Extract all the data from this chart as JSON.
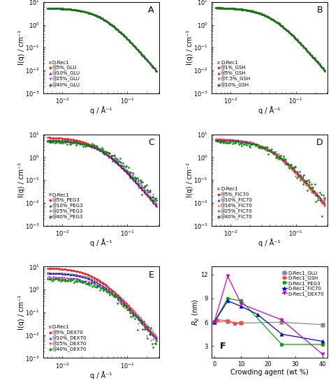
{
  "panels": {
    "A": {
      "label": "A",
      "legend_entries": [
        "D-Rec1",
        "@5%_GLU",
        "@10%_GLU",
        "@25%_GLU",
        "@40%_GLU"
      ],
      "colors": [
        "#999999",
        "#ff0000",
        "#0000cc",
        "#cc00cc",
        "#008800"
      ],
      "markers": [
        "s",
        "o",
        "^",
        "v",
        "D"
      ],
      "I0": [
        5.5,
        5.5,
        5.5,
        5.5,
        5.5
      ],
      "Rg_ang": [
        40,
        40,
        40,
        40,
        40
      ],
      "noise": [
        0.0,
        0.0,
        0.0,
        0.0,
        0.05
      ],
      "seeds": [
        1,
        2,
        3,
        4,
        5
      ]
    },
    "B": {
      "label": "B",
      "legend_entries": [
        "D-Rec1",
        "@1%_GSH",
        "@5%_GSH",
        "@7.5%_GSH",
        "@10%_GSH"
      ],
      "colors": [
        "#999999",
        "#ff0000",
        "#0000cc",
        "#cc00cc",
        "#008800"
      ],
      "markers": [
        "s",
        "o",
        "^",
        "v",
        "D"
      ],
      "I0": [
        5.5,
        5.6,
        5.7,
        5.7,
        5.7
      ],
      "Rg_ang": [
        40,
        40,
        40,
        40,
        40
      ],
      "noise": [
        0.0,
        0.0,
        0.0,
        0.0,
        0.06
      ],
      "seeds": [
        11,
        12,
        13,
        14,
        15
      ]
    },
    "C": {
      "label": "C",
      "legend_entries": [
        "D-Rec1",
        "@5%_PEG3",
        "@10%_PEG3",
        "@25%_PEG3",
        "@40%_PEG3"
      ],
      "colors": [
        "#999999",
        "#ff0000",
        "#0000cc",
        "#cc00cc",
        "#008800"
      ],
      "markers": [
        "s",
        "o",
        "^",
        "v",
        "D"
      ],
      "I0": [
        5.5,
        7.5,
        5.8,
        5.0,
        5.0
      ],
      "Rg_ang": [
        40,
        48,
        43,
        38,
        35
      ],
      "noise": [
        0.0,
        0.0,
        0.0,
        0.25,
        0.4
      ],
      "seeds": [
        21,
        22,
        23,
        24,
        25
      ]
    },
    "D": {
      "label": "D",
      "legend_entries": [
        "D-Rec1",
        "@5%_FIC70",
        "@10%_FIC70",
        "@16%_FIC70",
        "@25%_FIC70",
        "@40%_FIC70"
      ],
      "colors": [
        "#999999",
        "#ff0000",
        "#0000cc",
        "#ff8800",
        "#cc00cc",
        "#008800"
      ],
      "markers": [
        "s",
        "o",
        "^",
        "p",
        "v",
        "D"
      ],
      "I0": [
        5.5,
        6.0,
        6.5,
        6.5,
        6.0,
        5.0
      ],
      "Rg_ang": [
        40,
        42,
        45,
        45,
        42,
        38
      ],
      "noise": [
        0.0,
        0.0,
        0.0,
        0.0,
        0.25,
        0.45
      ],
      "seeds": [
        31,
        32,
        33,
        34,
        35,
        36
      ]
    },
    "E": {
      "label": "E",
      "legend_entries": [
        "D-Rec1",
        "@5%_DEX70",
        "@10%_DEX70",
        "@25%_DEX70",
        "@40%_DEX70"
      ],
      "colors": [
        "#999999",
        "#ff0000",
        "#0000cc",
        "#cc00cc",
        "#008800"
      ],
      "markers": [
        "s",
        "o",
        "^",
        "v",
        "D"
      ],
      "I0": [
        5.5,
        9.0,
        5.5,
        3.5,
        3.0
      ],
      "Rg_ang": [
        40,
        50,
        45,
        40,
        38
      ],
      "noise": [
        0.0,
        0.0,
        0.0,
        0.25,
        0.4
      ],
      "seeds": [
        41,
        42,
        43,
        44,
        45
      ]
    }
  },
  "panel_F": {
    "label": "F",
    "xlabel": "Crowding agent (wt %)",
    "ylabel": "R_g (nm)",
    "ylim": [
      1.5,
      13.0
    ],
    "yticks": [
      3,
      6,
      9,
      12
    ],
    "xlim": [
      -1,
      42
    ],
    "xticks": [
      0,
      10,
      20,
      30,
      40
    ],
    "series": {
      "D-Rec1_GLU": {
        "color": "#888888",
        "marker": "s",
        "linestyle": "-",
        "markersize": 4,
        "x": [
          0,
          5,
          10,
          25,
          40
        ],
        "y": [
          6.0,
          6.1,
          5.9,
          6.0,
          5.7
        ]
      },
      "D-Rec1_GSH": {
        "color": "#ff4444",
        "marker": "o",
        "linestyle": "-",
        "markersize": 4,
        "x": [
          0,
          1,
          5,
          7.5,
          10
        ],
        "y": [
          6.0,
          6.3,
          6.2,
          5.8,
          5.9
        ]
      },
      "D-Rec1_PEG3": {
        "color": "#00aa00",
        "marker": "o",
        "linestyle": "-",
        "markersize": 4,
        "x": [
          0,
          5,
          10,
          25,
          40
        ],
        "y": [
          6.0,
          9.0,
          8.7,
          3.2,
          3.2
        ]
      },
      "D-Rec1_FIC70": {
        "color": "#0000cc",
        "marker": "^",
        "linestyle": "-",
        "markersize": 4,
        "x": [
          0,
          5,
          10,
          16,
          25,
          40
        ],
        "y": [
          6.0,
          8.7,
          8.0,
          7.0,
          4.5,
          3.6
        ]
      },
      "D-Rec1_DEX70": {
        "color": "#cc00cc",
        "marker": "v",
        "linestyle": "-",
        "markersize": 4,
        "x": [
          0,
          5,
          10,
          25,
          40
        ],
        "y": [
          6.0,
          11.8,
          8.3,
          6.3,
          2.0
        ]
      }
    },
    "legend_entries": [
      "D-Rec1_GLU",
      "D-Rec1_GSH",
      "D-Rec1_PEG3",
      "D-Rec1_FIC70",
      "D-Rec1_DEX70"
    ]
  },
  "q_min": 0.006,
  "q_max": 0.28,
  "I_ylim_log": [
    -3,
    1
  ],
  "xlabel": "q / Å⁻¹",
  "ylabel": "I(q) / cm⁻¹",
  "background_color": "white",
  "panel_label_fontsize": 9,
  "axis_fontsize": 7,
  "legend_fontsize": 5.0,
  "tick_fontsize": 6
}
